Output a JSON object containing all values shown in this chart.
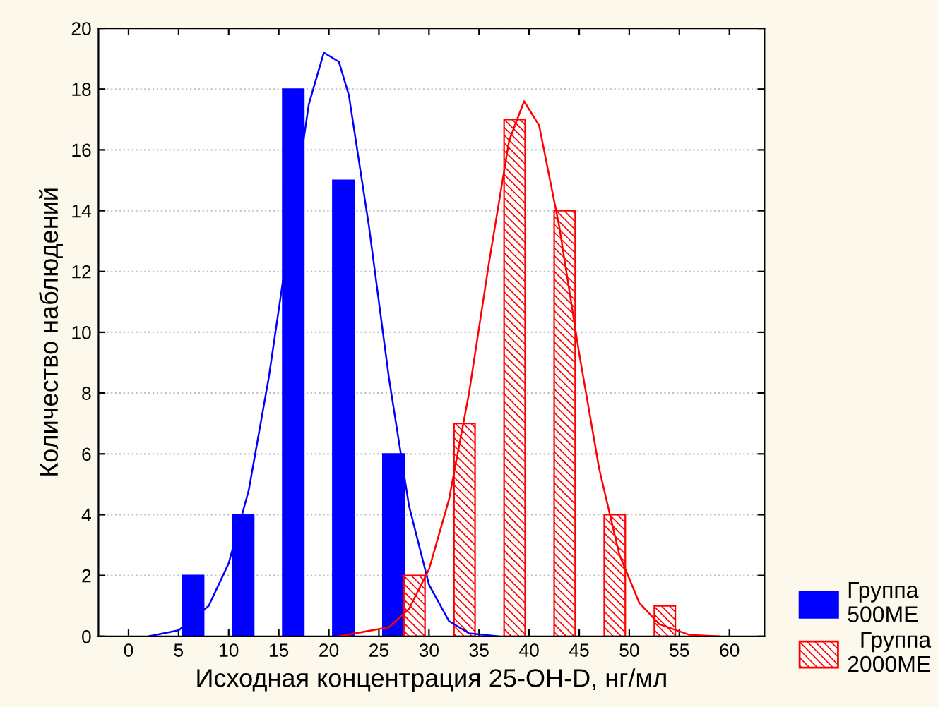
{
  "chart_data": {
    "type": "histogram",
    "xlabel": "Исходная концентрация 25-OH-D, нг/мл",
    "ylabel": "Количество наблюдений",
    "bins": [
      5,
      10,
      15,
      20,
      25,
      30,
      35,
      40,
      45,
      50,
      55
    ],
    "series": [
      {
        "name": "Группа\n500МЕ",
        "color": "#0000ff",
        "values": [
          2,
          4,
          18,
          15,
          6,
          0,
          0,
          0,
          0,
          0
        ]
      },
      {
        "name": "Группа\n2000МЕ",
        "color": "#ff0000",
        "values": [
          0,
          0,
          0,
          0,
          2,
          7,
          17,
          14,
          4,
          1
        ]
      },
      {
        "type": "line",
        "color": "#0000ff",
        "x": [
          2,
          5,
          8,
          10,
          12,
          14,
          16,
          18,
          19.5,
          21,
          22,
          24,
          26,
          28,
          30,
          32,
          34,
          37
        ],
        "values": [
          0,
          0.2,
          1,
          2.4,
          4.8,
          8.5,
          13,
          17.5,
          19.2,
          18.9,
          17.8,
          13.5,
          8.5,
          4.3,
          1.7,
          0.5,
          0.1,
          0
        ]
      },
      {
        "type": "line",
        "color": "#ff0000",
        "x": [
          21,
          26,
          28,
          30,
          32,
          34,
          36,
          38,
          39.5,
          41,
          43,
          45,
          47,
          49,
          51,
          53,
          56,
          59
        ],
        "values": [
          0,
          0.3,
          0.9,
          2.2,
          4.5,
          8,
          12.3,
          16.3,
          17.6,
          16.8,
          13.5,
          9.3,
          5.5,
          2.7,
          1.1,
          0.4,
          0.05,
          0
        ]
      }
    ],
    "xlim": [
      -3,
      63.5
    ],
    "xticks": [
      0,
      5,
      10,
      15,
      20,
      25,
      30,
      35,
      40,
      45,
      50,
      55,
      60
    ],
    "ylim": [
      0,
      20
    ],
    "yticks": [
      0,
      2,
      4,
      6,
      8,
      10,
      12,
      14,
      16,
      18,
      20
    ],
    "grid": "y",
    "legend": "right"
  }
}
